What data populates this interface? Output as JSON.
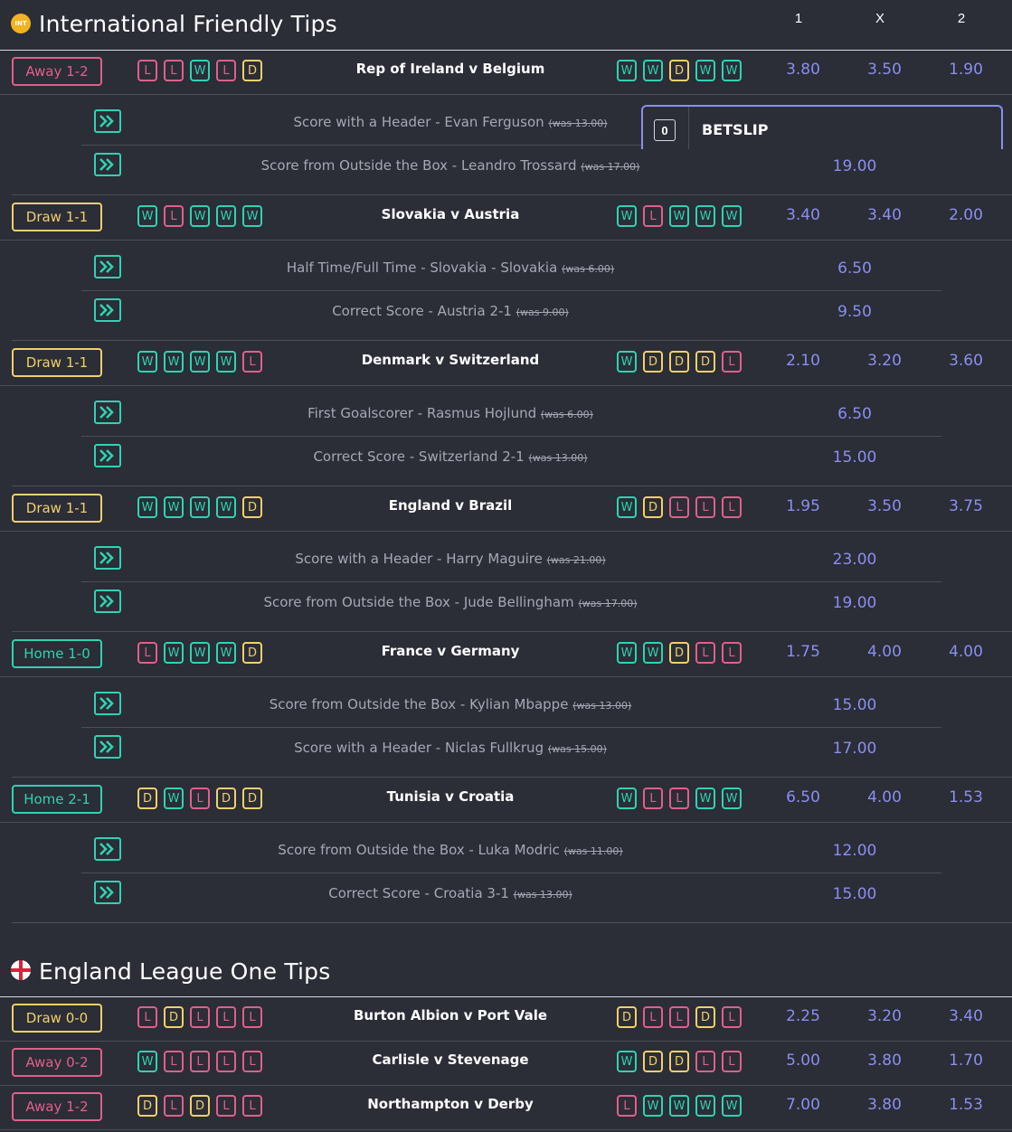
{
  "columns": {
    "home": "1",
    "draw": "X",
    "away": "2"
  },
  "colors": {
    "win": "#2fd3b3",
    "loss": "#e0608a",
    "draw": "#f2d06b",
    "odds": "#8a8ff0",
    "background": "#2b2d37"
  },
  "sections": [
    {
      "title": "International Friendly Tips",
      "icon": "int-badge-icon",
      "icon_text": "INT",
      "matches": [
        {
          "prediction": "Away 1-2",
          "pred_type": "away",
          "home_form": [
            "L",
            "L",
            "W",
            "L",
            "D"
          ],
          "teams": "Rep of Ireland v Belgium",
          "away_form": [
            "W",
            "W",
            "D",
            "W",
            "W"
          ],
          "odds": [
            "3.80",
            "3.50",
            "1.90"
          ],
          "tips": [
            {
              "text": "Score with a Header - Evan Ferguson",
              "was": "(was 13.00)",
              "odds": ""
            },
            {
              "text": "Score from Outside the Box - Leandro Trossard",
              "was": "(was 17.00)",
              "odds": "19.00"
            }
          ]
        },
        {
          "prediction": "Draw 1-1",
          "pred_type": "draw",
          "home_form": [
            "W",
            "L",
            "W",
            "W",
            "W"
          ],
          "teams": "Slovakia v Austria",
          "away_form": [
            "W",
            "L",
            "W",
            "W",
            "W"
          ],
          "odds": [
            "3.40",
            "3.40",
            "2.00"
          ],
          "tips": [
            {
              "text": "Half Time/Full Time - Slovakia - Slovakia",
              "was": "(was 6.00)",
              "odds": "6.50"
            },
            {
              "text": "Correct Score - Austria 2-1",
              "was": "(was 9.00)",
              "odds": "9.50"
            }
          ]
        },
        {
          "prediction": "Draw 1-1",
          "pred_type": "draw",
          "home_form": [
            "W",
            "W",
            "W",
            "W",
            "L"
          ],
          "teams": "Denmark v Switzerland",
          "away_form": [
            "W",
            "D",
            "D",
            "D",
            "L"
          ],
          "odds": [
            "2.10",
            "3.20",
            "3.60"
          ],
          "tips": [
            {
              "text": "First Goalscorer - Rasmus Hojlund",
              "was": "(was 6.00)",
              "odds": "6.50"
            },
            {
              "text": "Correct Score - Switzerland 2-1",
              "was": "(was 13.00)",
              "odds": "15.00"
            }
          ]
        },
        {
          "prediction": "Draw 1-1",
          "pred_type": "draw",
          "home_form": [
            "W",
            "W",
            "W",
            "W",
            "D"
          ],
          "teams": "England v Brazil",
          "away_form": [
            "W",
            "D",
            "L",
            "L",
            "L"
          ],
          "odds": [
            "1.95",
            "3.50",
            "3.75"
          ],
          "tips": [
            {
              "text": "Score with a Header - Harry Maguire",
              "was": "(was 21.00)",
              "odds": "23.00"
            },
            {
              "text": "Score from Outside the Box - Jude Bellingham",
              "was": "(was 17.00)",
              "odds": "19.00"
            }
          ]
        },
        {
          "prediction": "Home 1-0",
          "pred_type": "home",
          "home_form": [
            "L",
            "W",
            "W",
            "W",
            "D"
          ],
          "teams": "France v Germany",
          "away_form": [
            "W",
            "W",
            "D",
            "L",
            "L"
          ],
          "odds": [
            "1.75",
            "4.00",
            "4.00"
          ],
          "tips": [
            {
              "text": "Score from Outside the Box - Kylian Mbappe",
              "was": "(was 13.00)",
              "odds": "15.00"
            },
            {
              "text": "Score with a Header - Niclas Fullkrug",
              "was": "(was 15.00)",
              "odds": "17.00"
            }
          ]
        },
        {
          "prediction": "Home 2-1",
          "pred_type": "home",
          "home_form": [
            "D",
            "W",
            "L",
            "D",
            "D"
          ],
          "teams": "Tunisia v Croatia",
          "away_form": [
            "W",
            "L",
            "L",
            "W",
            "W"
          ],
          "odds": [
            "6.50",
            "4.00",
            "1.53"
          ],
          "tips": [
            {
              "text": "Score from Outside the Box - Luka Modric",
              "was": "(was 11.00)",
              "odds": "12.00"
            },
            {
              "text": "Correct Score - Croatia 3-1",
              "was": "(was 13.00)",
              "odds": "15.00"
            }
          ]
        }
      ]
    },
    {
      "title": "England League One Tips",
      "icon": "england-flag-icon",
      "icon_text": "",
      "matches": [
        {
          "prediction": "Draw 0-0",
          "pred_type": "draw",
          "home_form": [
            "L",
            "D",
            "L",
            "L",
            "L"
          ],
          "teams": "Burton Albion v Port Vale",
          "away_form": [
            "D",
            "L",
            "L",
            "D",
            "L"
          ],
          "odds": [
            "2.25",
            "3.20",
            "3.40"
          ],
          "tips": []
        },
        {
          "prediction": "Away 0-2",
          "pred_type": "away",
          "home_form": [
            "W",
            "L",
            "L",
            "L",
            "L"
          ],
          "teams": "Carlisle v Stevenage",
          "away_form": [
            "W",
            "D",
            "D",
            "L",
            "L"
          ],
          "odds": [
            "5.00",
            "3.80",
            "1.70"
          ],
          "tips": []
        },
        {
          "prediction": "Away 1-2",
          "pred_type": "away",
          "home_form": [
            "D",
            "L",
            "D",
            "L",
            "L"
          ],
          "teams": "Northampton v Derby",
          "away_form": [
            "L",
            "W",
            "W",
            "W",
            "W"
          ],
          "odds": [
            "7.00",
            "3.80",
            "1.53"
          ],
          "tips": []
        }
      ]
    }
  ],
  "betslip": {
    "count": "0",
    "label": "BETSLIP"
  }
}
